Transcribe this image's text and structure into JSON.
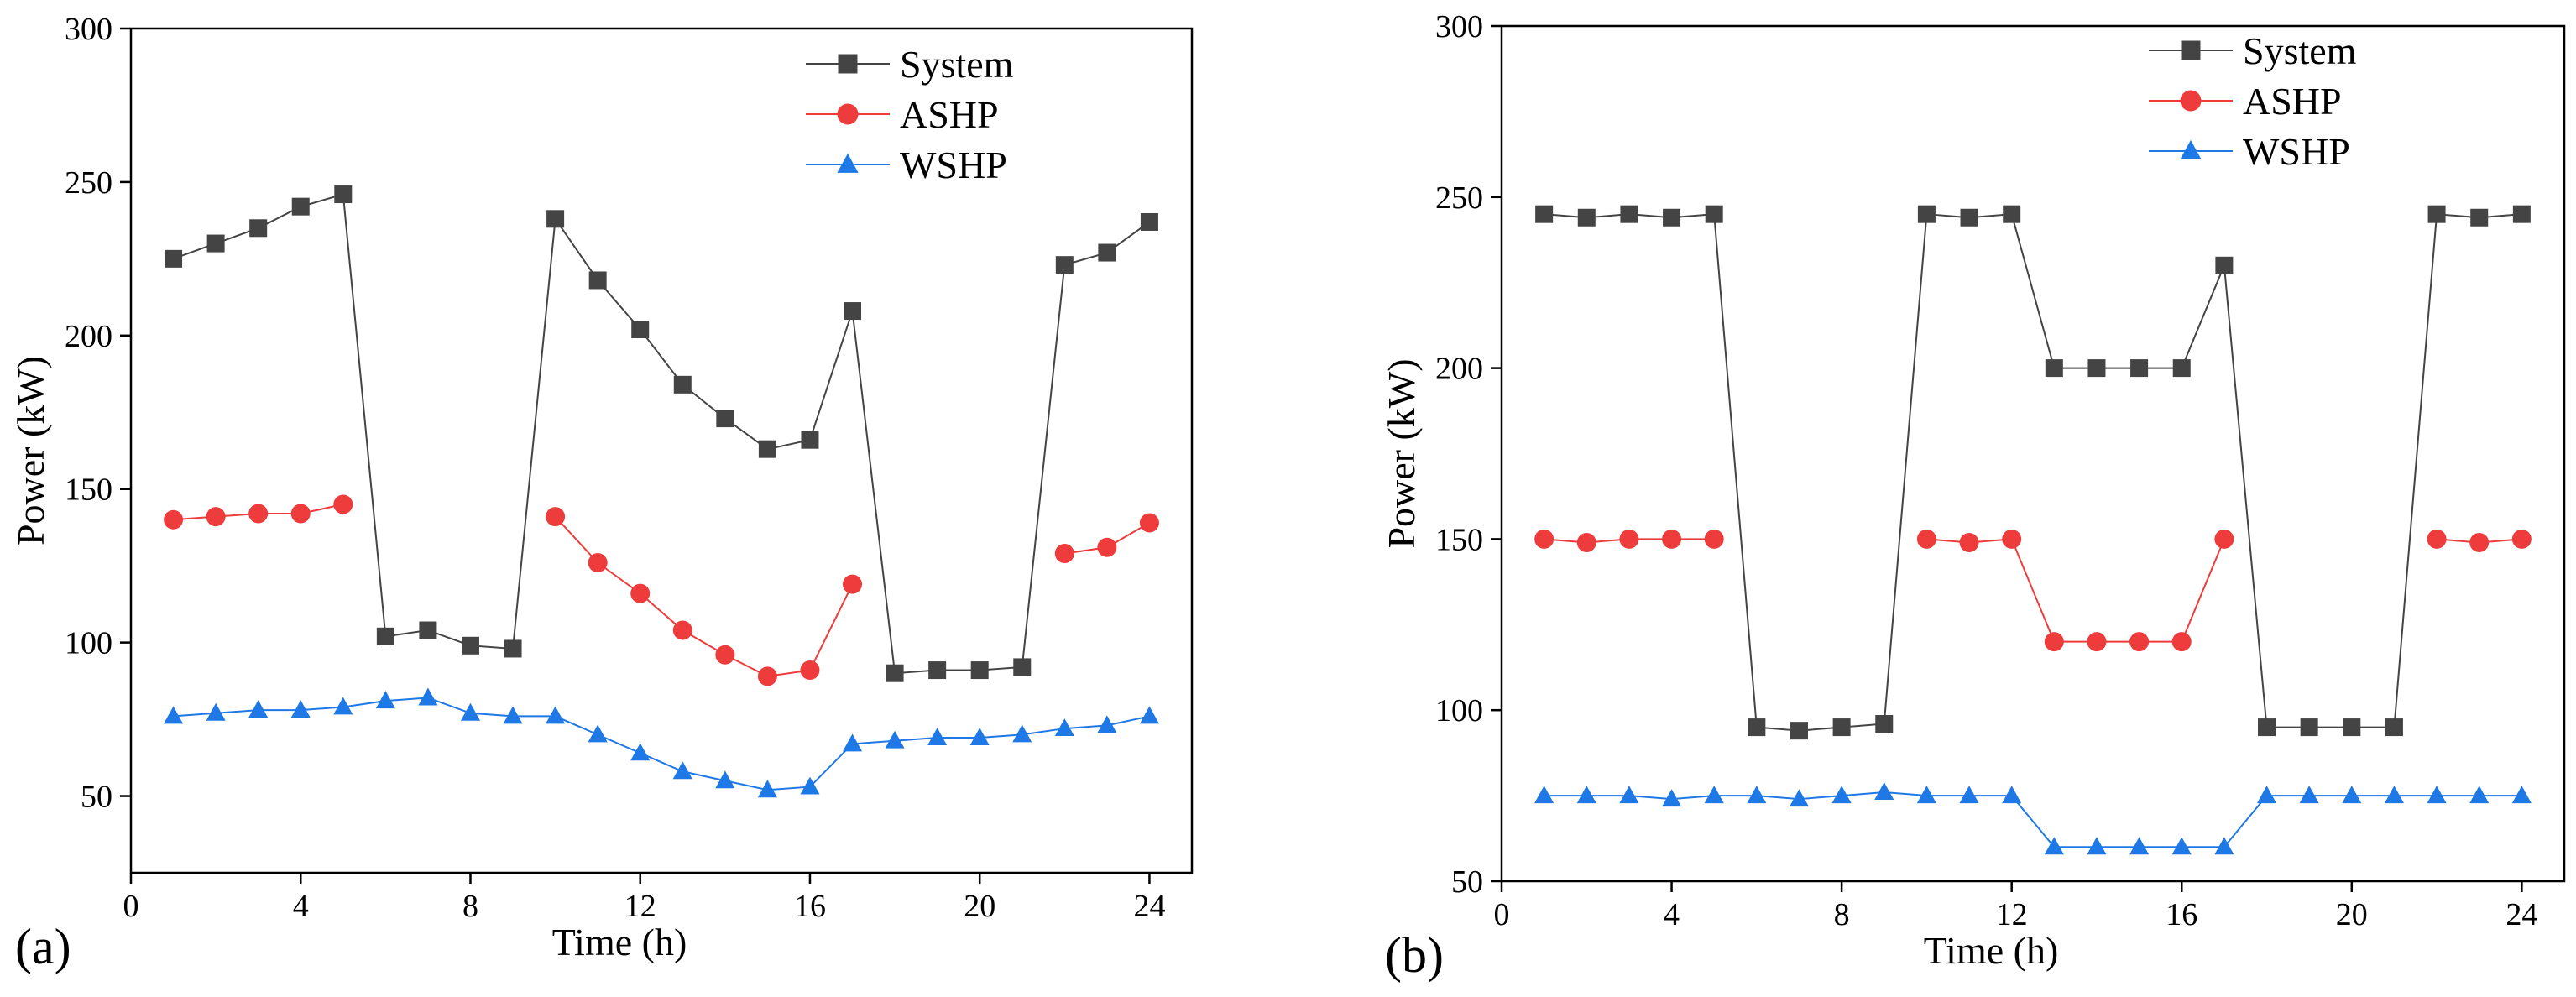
{
  "chart_data": [
    {
      "type": "line",
      "panel_label": "(a)",
      "title": "",
      "xlabel": "Time (h)",
      "ylabel": "Power (kW)",
      "xlim": [
        0,
        25
      ],
      "ylim": [
        25,
        300
      ],
      "xticks": [
        0,
        4,
        8,
        12,
        16,
        20,
        24
      ],
      "xtick_labels": [
        "0",
        "4",
        "8",
        "12",
        "16",
        "20",
        "24"
      ],
      "yticks": [
        50,
        100,
        150,
        200,
        250,
        300
      ],
      "ytick_labels": [
        "50",
        "100",
        "150",
        "200",
        "250",
        "300"
      ],
      "grid": false,
      "legend_position": "top-right",
      "series": [
        {
          "name": "System",
          "color": "#444444",
          "marker": "square",
          "x": [
            1,
            2,
            3,
            4,
            5,
            6,
            7,
            8,
            9,
            10,
            11,
            12,
            13,
            14,
            15,
            16,
            17,
            18,
            19,
            20,
            21,
            22,
            23,
            24
          ],
          "values": [
            225,
            230,
            235,
            242,
            246,
            102,
            104,
            99,
            98,
            238,
            218,
            202,
            184,
            173,
            163,
            166,
            208,
            90,
            91,
            91,
            92,
            223,
            227,
            237
          ]
        },
        {
          "name": "ASHP",
          "color": "#ee3b3b",
          "marker": "circle",
          "x": [
            1,
            2,
            3,
            4,
            5,
            10,
            11,
            12,
            13,
            14,
            15,
            16,
            17,
            22,
            23,
            24
          ],
          "values": [
            140,
            141,
            142,
            142,
            145,
            141,
            126,
            116,
            104,
            96,
            89,
            91,
            119,
            129,
            131,
            139
          ],
          "segments": [
            [
              1,
              5
            ],
            [
              10,
              17
            ],
            [
              22,
              24
            ]
          ]
        },
        {
          "name": "WSHP",
          "color": "#1e78e6",
          "marker": "triangle",
          "x": [
            1,
            2,
            3,
            4,
            5,
            6,
            7,
            8,
            9,
            10,
            11,
            12,
            13,
            14,
            15,
            16,
            17,
            18,
            19,
            20,
            21,
            22,
            23,
            24
          ],
          "values": [
            76,
            77,
            78,
            78,
            79,
            81,
            82,
            77,
            76,
            76,
            70,
            64,
            58,
            55,
            52,
            53,
            67,
            68,
            69,
            69,
            70,
            72,
            73,
            76
          ]
        }
      ]
    },
    {
      "type": "line",
      "panel_label": "(b)",
      "title": "",
      "xlabel": "Time (h)",
      "ylabel": "Power (kW)",
      "xlim": [
        0,
        25
      ],
      "ylim": [
        50,
        300
      ],
      "xticks": [
        0,
        4,
        8,
        12,
        16,
        20,
        24
      ],
      "xtick_labels": [
        "0",
        "4",
        "8",
        "12",
        "16",
        "20",
        "24"
      ],
      "yticks": [
        50,
        100,
        150,
        200,
        250,
        300
      ],
      "ytick_labels": [
        "50",
        "100",
        "150",
        "200",
        "250",
        "300"
      ],
      "grid": false,
      "legend_position": "top-right",
      "series": [
        {
          "name": "System",
          "color": "#444444",
          "marker": "square",
          "x": [
            1,
            2,
            3,
            4,
            5,
            6,
            7,
            8,
            9,
            10,
            11,
            12,
            13,
            14,
            15,
            16,
            17,
            18,
            19,
            20,
            21,
            22,
            23,
            24
          ],
          "values": [
            245,
            244,
            245,
            244,
            245,
            95,
            94,
            95,
            96,
            245,
            244,
            245,
            200,
            200,
            200,
            200,
            230,
            95,
            95,
            95,
            95,
            245,
            244,
            245
          ]
        },
        {
          "name": "ASHP",
          "color": "#ee3b3b",
          "marker": "circle",
          "x": [
            1,
            2,
            3,
            4,
            5,
            10,
            11,
            12,
            13,
            14,
            15,
            16,
            17,
            22,
            23,
            24
          ],
          "values": [
            150,
            149,
            150,
            150,
            150,
            150,
            149,
            150,
            120,
            120,
            120,
            120,
            150,
            150,
            149,
            150
          ],
          "segments": [
            [
              1,
              5
            ],
            [
              10,
              17
            ],
            [
              22,
              24
            ]
          ]
        },
        {
          "name": "WSHP",
          "color": "#1e78e6",
          "marker": "triangle",
          "x": [
            1,
            2,
            3,
            4,
            5,
            6,
            7,
            8,
            9,
            10,
            11,
            12,
            13,
            14,
            15,
            16,
            17,
            18,
            19,
            20,
            21,
            22,
            23,
            24
          ],
          "values": [
            75,
            75,
            75,
            74,
            75,
            75,
            74,
            75,
            76,
            75,
            75,
            75,
            60,
            60,
            60,
            60,
            60,
            75,
            75,
            75,
            75,
            75,
            75,
            75
          ]
        }
      ]
    }
  ]
}
